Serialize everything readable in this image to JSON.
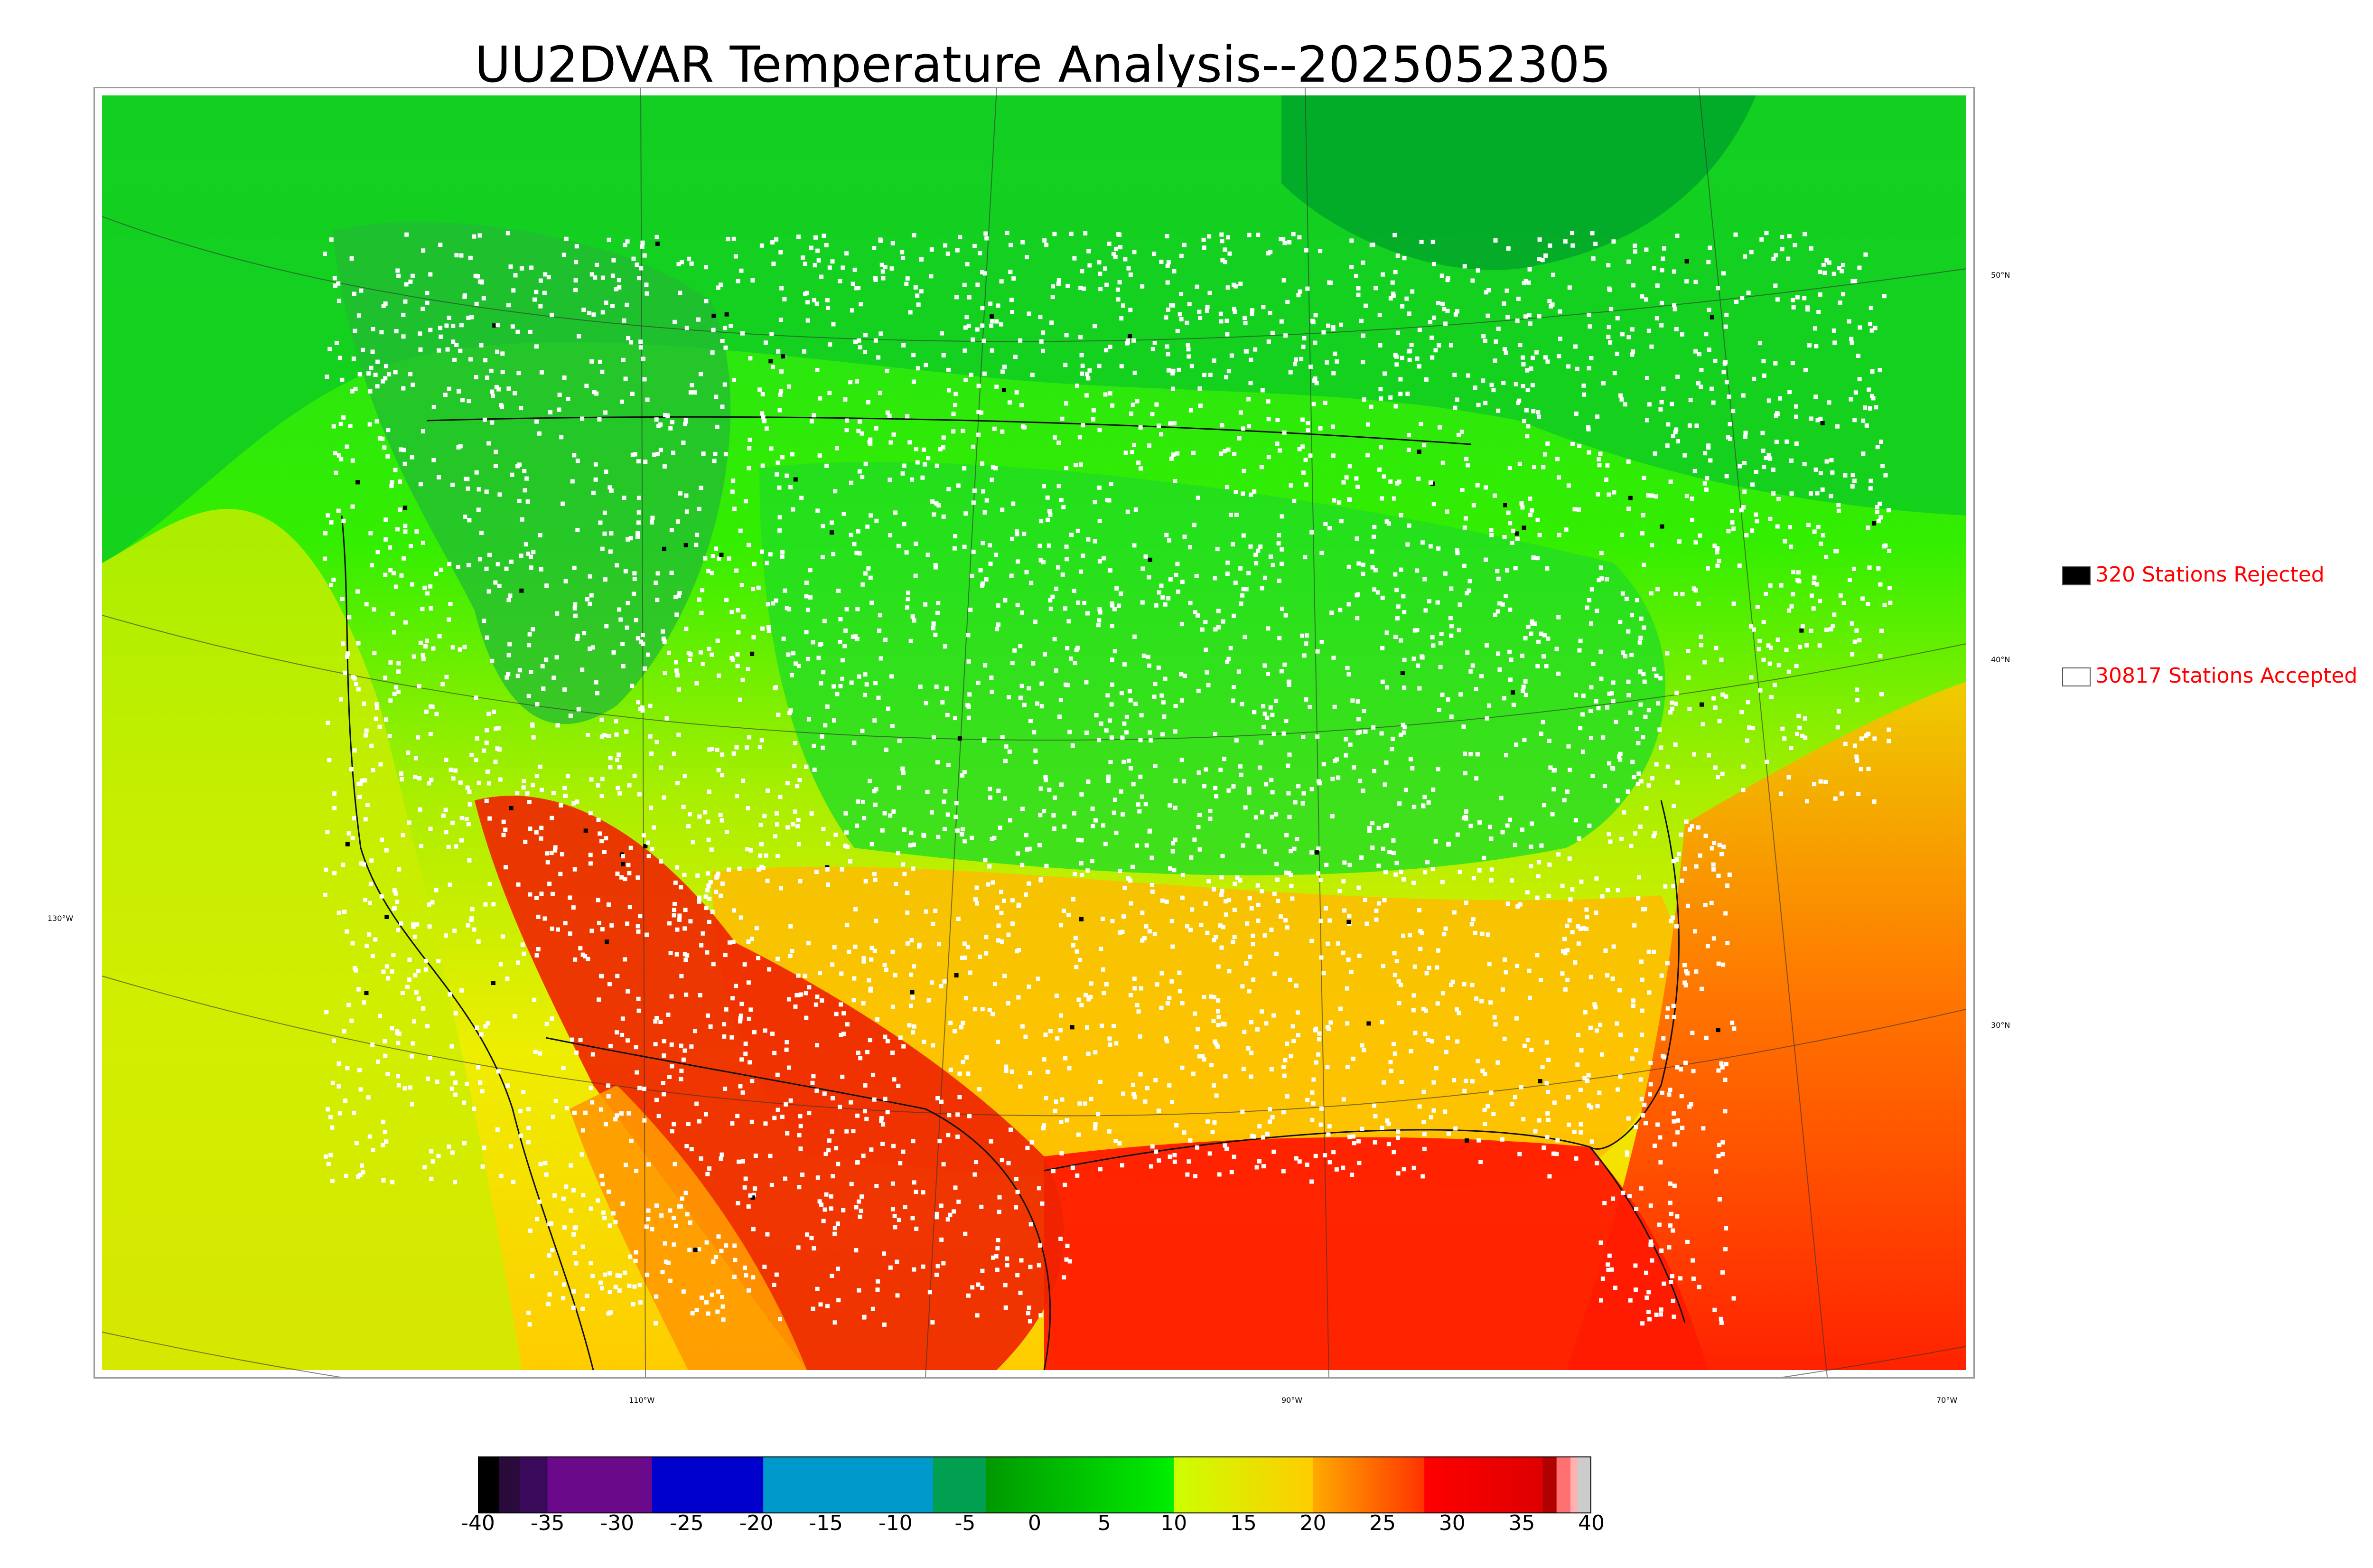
{
  "title": "UU2DVAR Temperature Analysis--2025052305",
  "legend": {
    "rejected": {
      "label": "320 Stations Rejected",
      "color": "#000000"
    },
    "accepted": {
      "label": "30817 Stations Accepted",
      "color": "#ffffff"
    }
  },
  "graticule_labels": {
    "lat_50": "50°N",
    "lat_40": "40°N",
    "lat_30": "30°N",
    "lon_130": "130°W",
    "lon_110": "110°W",
    "lon_90": "90°W",
    "lon_70": "70°W"
  },
  "colorbar": {
    "ticks": [
      "-40",
      "-35",
      "-30",
      "-25",
      "-20",
      "-15",
      "-10",
      "-5",
      "0",
      "5",
      "10",
      "15",
      "20",
      "25",
      "30",
      "35",
      "40"
    ],
    "min": -40,
    "max": 40,
    "stops": [
      {
        "from": -40,
        "to": -38.5,
        "color": "#000000"
      },
      {
        "from": -38.5,
        "to": -37,
        "color": "#2a0a3a"
      },
      {
        "from": -37,
        "to": -35,
        "color": "#3a0a5a"
      },
      {
        "from": -35,
        "to": -27.5,
        "color": "#6a0a8a"
      },
      {
        "from": -27.5,
        "to": -19.5,
        "color": "#0000cc"
      },
      {
        "from": -19.5,
        "to": -7.3,
        "color": "#0099cc"
      },
      {
        "from": -7.3,
        "to": -3.5,
        "color": "#00a050"
      },
      {
        "from": -3.5,
        "to": 10,
        "gradient": [
          "#009900",
          "#00ee00"
        ]
      },
      {
        "from": 10,
        "to": 20,
        "gradient": [
          "#ccff00",
          "#ffcc00"
        ]
      },
      {
        "from": 20,
        "to": 28,
        "gradient": [
          "#ffaa00",
          "#ff3300"
        ]
      },
      {
        "from": 28,
        "to": 36.5,
        "gradient": [
          "#ff0000",
          "#dd0000"
        ]
      },
      {
        "from": 36.5,
        "to": 37.5,
        "color": "#b00000"
      },
      {
        "from": 37.5,
        "to": 38.5,
        "color": "#ff7070"
      },
      {
        "from": 38.5,
        "to": 39,
        "color": "#ffb0b0"
      },
      {
        "from": 39,
        "to": 40,
        "color": "#cccccc"
      }
    ]
  }
}
